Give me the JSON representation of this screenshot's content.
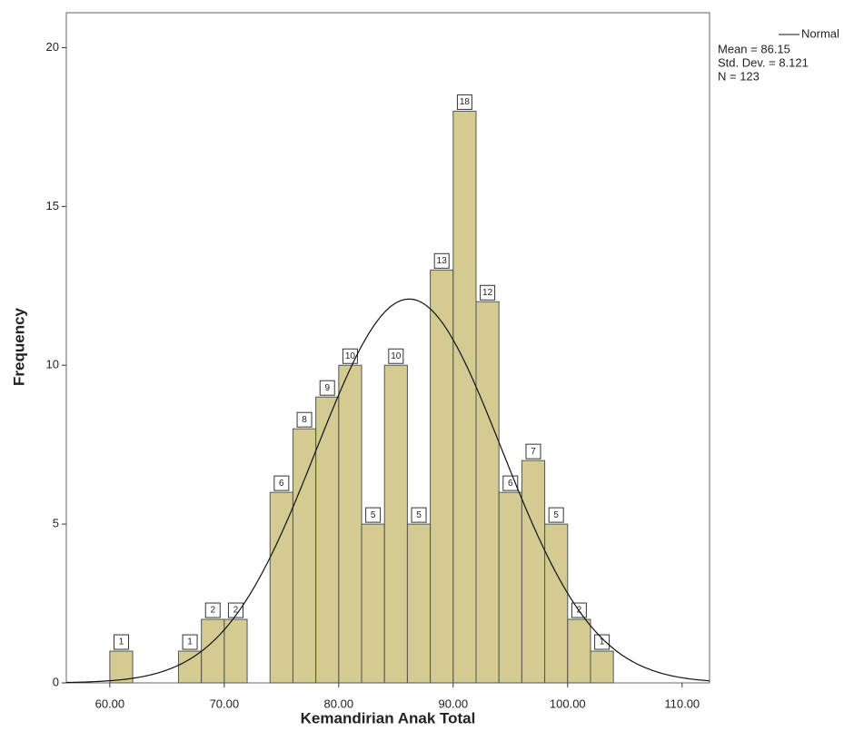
{
  "chart_data": {
    "type": "histogram",
    "x_label": "Kemandirian Anak Total",
    "y_label": "Frequency",
    "bins": [
      60,
      62,
      64,
      66,
      68,
      70,
      72,
      74,
      76,
      78,
      80,
      82,
      84,
      86,
      88,
      90,
      92,
      94,
      96,
      98,
      100,
      102,
      104
    ],
    "values": [
      1,
      0,
      0,
      1,
      2,
      2,
      0,
      6,
      8,
      9,
      10,
      5,
      10,
      5,
      13,
      18,
      12,
      6,
      7,
      5,
      2,
      1
    ],
    "color": "#cbc27f",
    "xlim": [
      56.2,
      112.4
    ],
    "xticks": [
      {
        "value": 60,
        "label": "60.00"
      },
      {
        "value": 70,
        "label": "70.00"
      },
      {
        "value": 80,
        "label": "80.00"
      },
      {
        "value": 90,
        "label": "90.00"
      },
      {
        "value": 100,
        "label": "100.00"
      },
      {
        "value": 110,
        "label": "110.00"
      }
    ],
    "ylim": [
      0,
      21.1
    ],
    "yticks": [
      0,
      5,
      10,
      15,
      20
    ],
    "normal_curve": {
      "name": "Normal",
      "mean": 86.15,
      "std_dev": 8.121,
      "n": 123,
      "labels": [
        "Mean = 86.15",
        "Std. Dev. = 8.121",
        "N = 123"
      ]
    }
  }
}
